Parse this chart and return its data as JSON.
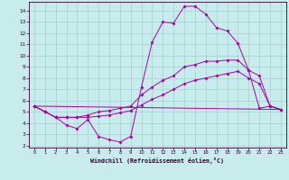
{
  "xlabel": "Windchill (Refroidissement éolien,°C)",
  "bg_color": "#c8ecec",
  "line_color": "#aa00aa",
  "grid_color": "#a0d0d0",
  "xlim": [
    -0.5,
    23.5
  ],
  "ylim": [
    1.8,
    14.8
  ],
  "xticks": [
    0,
    1,
    2,
    3,
    4,
    5,
    6,
    7,
    8,
    9,
    10,
    11,
    12,
    13,
    14,
    15,
    16,
    17,
    18,
    19,
    20,
    21,
    22,
    23
  ],
  "yticks": [
    2,
    3,
    4,
    5,
    6,
    7,
    8,
    9,
    10,
    11,
    12,
    13,
    14
  ],
  "curve1": {
    "x": [
      0,
      1,
      2,
      3,
      4,
      5,
      6,
      7,
      8,
      9,
      10,
      11,
      12,
      13,
      14,
      15,
      16,
      17,
      18,
      19,
      20,
      21,
      22,
      23
    ],
    "y": [
      5.5,
      5.0,
      4.5,
      3.8,
      3.5,
      4.3,
      2.8,
      2.5,
      2.3,
      2.8,
      7.2,
      11.2,
      13.0,
      12.9,
      14.4,
      14.4,
      13.7,
      12.5,
      12.2,
      11.1,
      8.7,
      5.3,
      5.5,
      5.2
    ]
  },
  "curve2": {
    "x": [
      0,
      1,
      2,
      3,
      4,
      5,
      6,
      7,
      8,
      9,
      10,
      11,
      12,
      13,
      14,
      15,
      16,
      17,
      18,
      19,
      20,
      21,
      22,
      23
    ],
    "y": [
      5.5,
      5.0,
      4.5,
      4.5,
      4.5,
      4.7,
      5.0,
      5.1,
      5.3,
      5.5,
      6.5,
      7.2,
      7.8,
      8.2,
      9.0,
      9.2,
      9.5,
      9.5,
      9.6,
      9.6,
      8.7,
      8.2,
      5.5,
      5.2
    ]
  },
  "curve3": {
    "x": [
      0,
      1,
      2,
      3,
      4,
      5,
      6,
      7,
      8,
      9,
      10,
      11,
      12,
      13,
      14,
      15,
      16,
      17,
      18,
      19,
      20,
      21,
      22,
      23
    ],
    "y": [
      5.5,
      5.0,
      4.5,
      4.5,
      4.5,
      4.5,
      4.6,
      4.7,
      4.9,
      5.1,
      5.6,
      6.1,
      6.5,
      7.0,
      7.5,
      7.8,
      8.0,
      8.2,
      8.4,
      8.6,
      8.0,
      7.5,
      5.5,
      5.2
    ]
  },
  "curve4": {
    "x": [
      0,
      23
    ],
    "y": [
      5.5,
      5.2
    ]
  }
}
